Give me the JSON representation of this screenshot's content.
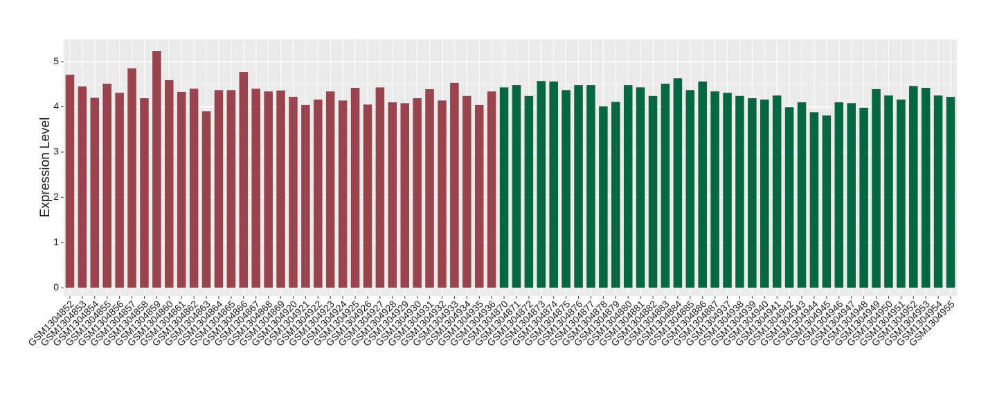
{
  "chart_data": {
    "type": "bar",
    "y_label": "Expression Level",
    "categories": [
      "GSM1304852",
      "GSM1304853",
      "GSM1304854",
      "GSM1304855",
      "GSM1304856",
      "GSM1304857",
      "GSM1304858",
      "GSM1304859",
      "GSM1304860",
      "GSM1304861",
      "GSM1304862",
      "GSM1304863",
      "GSM1304864",
      "GSM1304865",
      "GSM1304866",
      "GSM1304867",
      "GSM1304868",
      "GSM1304869",
      "GSM1304920",
      "GSM1304921",
      "GSM1304922",
      "GSM1304923",
      "GSM1304924",
      "GSM1304925",
      "GSM1304926",
      "GSM1304927",
      "GSM1304928",
      "GSM1304929",
      "GSM1304930",
      "GSM1304931",
      "GSM1304932",
      "GSM1304933",
      "GSM1304934",
      "GSM1304935",
      "GSM1304936",
      "GSM1304870",
      "GSM1304871",
      "GSM1304872",
      "GSM1304873",
      "GSM1304874",
      "GSM1304875",
      "GSM1304876",
      "GSM1304877",
      "GSM1304878",
      "GSM1304879",
      "GSM1304880",
      "GSM1304881",
      "GSM1304882",
      "GSM1304883",
      "GSM1304884",
      "GSM1304885",
      "GSM1304886",
      "GSM1304887",
      "GSM1304937",
      "GSM1304938",
      "GSM1304939",
      "GSM1304940",
      "GSM1304941",
      "GSM1304942",
      "GSM1304943",
      "GSM1304944",
      "GSM1304945",
      "GSM1304946",
      "GSM1304947",
      "GSM1304948",
      "GSM1304949",
      "GSM1304950",
      "GSM1304951",
      "GSM1304952",
      "GSM1304953",
      "GSM1304954",
      "GSM1304955"
    ],
    "values": [
      4.71,
      4.45,
      4.2,
      4.51,
      4.31,
      4.85,
      4.19,
      5.23,
      4.59,
      4.33,
      4.4,
      3.9,
      4.37,
      4.37,
      4.77,
      4.4,
      4.34,
      4.36,
      4.22,
      4.04,
      4.16,
      4.34,
      4.14,
      4.42,
      4.05,
      4.43,
      4.1,
      4.08,
      4.19,
      4.39,
      4.14,
      4.53,
      4.24,
      4.04,
      4.34,
      4.43,
      4.48,
      4.24,
      4.57,
      4.56,
      4.37,
      4.48,
      4.48,
      4.01,
      4.11,
      4.48,
      4.43,
      4.24,
      4.51,
      4.63,
      4.37,
      4.56,
      4.34,
      4.31,
      4.24,
      4.19,
      4.16,
      4.25,
      3.99,
      4.1,
      3.88,
      3.81,
      4.1,
      4.08,
      3.98,
      4.39,
      4.25,
      4.16,
      4.46,
      4.42,
      4.25,
      4.22
    ],
    "colors": [
      "#9a4450",
      "#9a4450",
      "#9a4450",
      "#9a4450",
      "#9a4450",
      "#9a4450",
      "#9a4450",
      "#9a4450",
      "#9a4450",
      "#9a4450",
      "#9a4450",
      "#9a4450",
      "#9a4450",
      "#9a4450",
      "#9a4450",
      "#9a4450",
      "#9a4450",
      "#9a4450",
      "#9a4450",
      "#9a4450",
      "#9a4450",
      "#9a4450",
      "#9a4450",
      "#9a4450",
      "#9a4450",
      "#9a4450",
      "#9a4450",
      "#9a4450",
      "#9a4450",
      "#9a4450",
      "#9a4450",
      "#9a4450",
      "#9a4450",
      "#9a4450",
      "#9a4450",
      "#076644",
      "#076644",
      "#076644",
      "#076644",
      "#076644",
      "#076644",
      "#076644",
      "#076644",
      "#076644",
      "#076644",
      "#076644",
      "#076644",
      "#076644",
      "#076644",
      "#076644",
      "#076644",
      "#076644",
      "#076644",
      "#076644",
      "#076644",
      "#076644",
      "#076644",
      "#076644",
      "#076644",
      "#076644",
      "#076644",
      "#076644",
      "#076644",
      "#076644",
      "#076644",
      "#076644",
      "#076644",
      "#076644",
      "#076644",
      "#076644",
      "#076644",
      "#076644"
    ],
    "ylim": [
      -0.18,
      5.49
    ],
    "yticks": [
      0,
      1,
      2,
      3,
      4,
      5
    ],
    "grid": true
  }
}
